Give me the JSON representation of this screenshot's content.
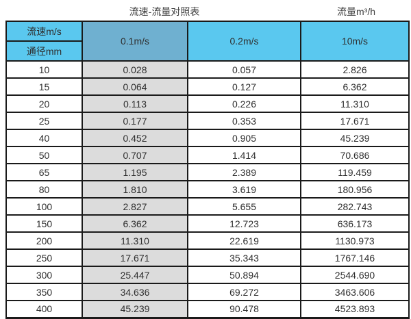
{
  "header": {
    "title": "流速-流量对照表",
    "unit_label": "流量m³/h"
  },
  "table": {
    "corner_top": "流速m/s",
    "corner_bottom": "通径mm",
    "velocity_columns": [
      "0.1m/s",
      "0.2m/s",
      "10m/s"
    ],
    "rows": [
      [
        "10",
        "0.028",
        "0.057",
        "2.826"
      ],
      [
        "15",
        "0.064",
        "0.127",
        "6.362"
      ],
      [
        "20",
        "0.113",
        "0.226",
        "11.310"
      ],
      [
        "25",
        "0.177",
        "0.353",
        "17.671"
      ],
      [
        "40",
        "0.452",
        "0.905",
        "45.239"
      ],
      [
        "50",
        "0.707",
        "1.414",
        "70.686"
      ],
      [
        "65",
        "1.195",
        "2.389",
        "119.459"
      ],
      [
        "80",
        "1.810",
        "3.619",
        "180.956"
      ],
      [
        "100",
        "2.827",
        "5.655",
        "282.743"
      ],
      [
        "150",
        "6.362",
        "12.723",
        "636.173"
      ],
      [
        "200",
        "11.310",
        "22.619",
        "1130.973"
      ],
      [
        "250",
        "17.671",
        "35.343",
        "1767.146"
      ],
      [
        "300",
        "25.447",
        "50.894",
        "2544.690"
      ],
      [
        "350",
        "34.636",
        "69.272",
        "3463.606"
      ],
      [
        "400",
        "45.239",
        "90.478",
        "4523.893"
      ]
    ]
  },
  "colors": {
    "header_cyan": "#5ac8ef",
    "header_steel_blue": "#6fb0d0",
    "shaded_column_gray": "#dcdcdc",
    "grid_border": "#1a1a1a",
    "text": "#2e2e2e"
  },
  "chart_data": {
    "type": "table",
    "title": "流速-流量对照表",
    "unit": "流量m³/h",
    "columns": [
      "通径mm",
      "0.1m/s",
      "0.2m/s",
      "10m/s"
    ],
    "rows": [
      [
        10,
        0.028,
        0.057,
        2.826
      ],
      [
        15,
        0.064,
        0.127,
        6.362
      ],
      [
        20,
        0.113,
        0.226,
        11.31
      ],
      [
        25,
        0.177,
        0.353,
        17.671
      ],
      [
        40,
        0.452,
        0.905,
        45.239
      ],
      [
        50,
        0.707,
        1.414,
        70.686
      ],
      [
        65,
        1.195,
        2.389,
        119.459
      ],
      [
        80,
        1.81,
        3.619,
        180.956
      ],
      [
        100,
        2.827,
        5.655,
        282.743
      ],
      [
        150,
        6.362,
        12.723,
        636.173
      ],
      [
        200,
        11.31,
        22.619,
        1130.973
      ],
      [
        250,
        17.671,
        35.343,
        1767.146
      ],
      [
        300,
        25.447,
        50.894,
        2544.69
      ],
      [
        350,
        34.636,
        69.272,
        3463.606
      ],
      [
        400,
        45.239,
        90.478,
        4523.893
      ]
    ]
  }
}
